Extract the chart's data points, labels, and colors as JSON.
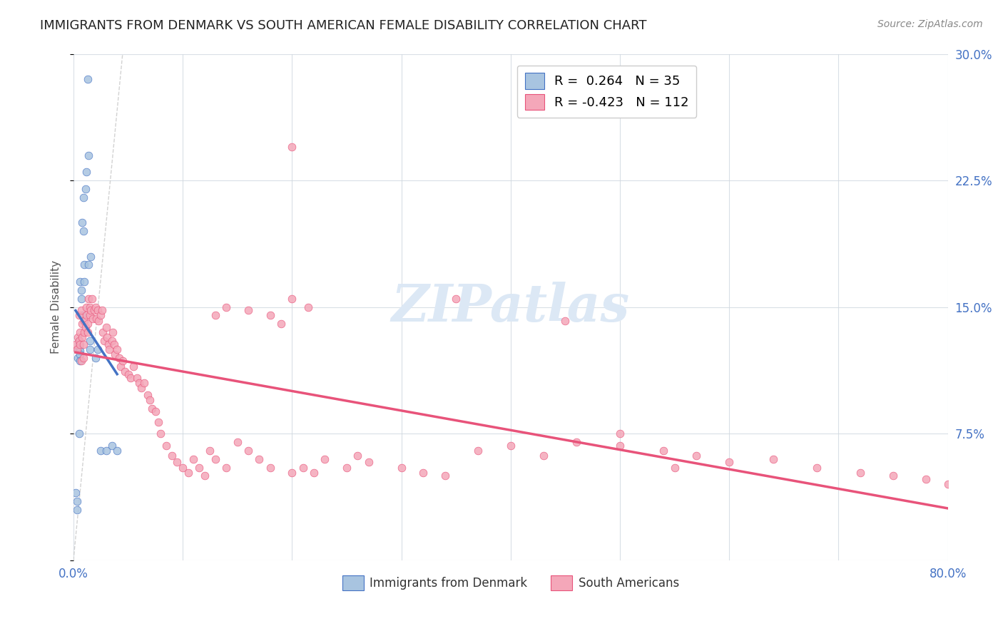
{
  "title": "IMMIGRANTS FROM DENMARK VS SOUTH AMERICAN FEMALE DISABILITY CORRELATION CHART",
  "source": "Source: ZipAtlas.com",
  "xlabel": "",
  "ylabel": "Female Disability",
  "watermark": "ZIPatlas",
  "xlim": [
    0.0,
    0.8
  ],
  "ylim": [
    0.0,
    0.3
  ],
  "xticks": [
    0.0,
    0.1,
    0.2,
    0.3,
    0.4,
    0.5,
    0.6,
    0.7,
    0.8
  ],
  "xticklabels": [
    "0.0%",
    "",
    "",
    "",
    "",
    "",
    "",
    "",
    "80.0%"
  ],
  "yticks": [
    0.0,
    0.075,
    0.15,
    0.225,
    0.3
  ],
  "yticklabels": [
    "",
    "7.5%",
    "15.0%",
    "22.5%",
    "30.0%"
  ],
  "legend_entry1": "R =  0.264   N = 35",
  "legend_entry2": "R = -0.423   N = 112",
  "legend_label1": "Immigrants from Denmark",
  "legend_label2": "South Americans",
  "denmark_R": 0.264,
  "denmark_N": 35,
  "sa_R": -0.423,
  "sa_N": 112,
  "denmark_color": "#a8c4e0",
  "denmark_line_color": "#4472c4",
  "sa_color": "#f4a7b9",
  "sa_line_color": "#e8537a",
  "diagonal_color": "#c0c0c0",
  "background_color": "#ffffff",
  "grid_color": "#d0d8e0",
  "title_color": "#222222",
  "source_color": "#888888",
  "right_tick_color": "#4472c4",
  "watermark_color": "#dce8f5",
  "denmark_points_x": [
    0.002,
    0.003,
    0.003,
    0.004,
    0.004,
    0.005,
    0.005,
    0.005,
    0.005,
    0.006,
    0.006,
    0.006,
    0.006,
    0.007,
    0.007,
    0.008,
    0.008,
    0.009,
    0.009,
    0.01,
    0.01,
    0.011,
    0.012,
    0.013,
    0.014,
    0.014,
    0.015,
    0.015,
    0.016,
    0.02,
    0.022,
    0.025,
    0.03,
    0.035,
    0.04
  ],
  "denmark_points_y": [
    0.04,
    0.035,
    0.03,
    0.125,
    0.12,
    0.13,
    0.128,
    0.126,
    0.075,
    0.124,
    0.122,
    0.118,
    0.165,
    0.16,
    0.155,
    0.145,
    0.2,
    0.195,
    0.215,
    0.165,
    0.175,
    0.22,
    0.23,
    0.285,
    0.175,
    0.24,
    0.13,
    0.125,
    0.18,
    0.12,
    0.125,
    0.065,
    0.065,
    0.068,
    0.065
  ],
  "sa_points_x": [
    0.002,
    0.003,
    0.004,
    0.005,
    0.005,
    0.006,
    0.006,
    0.007,
    0.007,
    0.008,
    0.008,
    0.009,
    0.009,
    0.01,
    0.01,
    0.011,
    0.012,
    0.012,
    0.013,
    0.013,
    0.014,
    0.015,
    0.015,
    0.016,
    0.017,
    0.018,
    0.019,
    0.02,
    0.021,
    0.022,
    0.023,
    0.025,
    0.026,
    0.027,
    0.028,
    0.03,
    0.031,
    0.032,
    0.033,
    0.035,
    0.036,
    0.037,
    0.038,
    0.04,
    0.042,
    0.043,
    0.045,
    0.047,
    0.05,
    0.052,
    0.055,
    0.058,
    0.06,
    0.062,
    0.065,
    0.068,
    0.07,
    0.072,
    0.075,
    0.078,
    0.08,
    0.085,
    0.09,
    0.095,
    0.1,
    0.105,
    0.11,
    0.115,
    0.12,
    0.125,
    0.13,
    0.14,
    0.15,
    0.16,
    0.17,
    0.18,
    0.2,
    0.21,
    0.22,
    0.23,
    0.25,
    0.26,
    0.27,
    0.3,
    0.32,
    0.34,
    0.37,
    0.4,
    0.43,
    0.46,
    0.5,
    0.54,
    0.57,
    0.6,
    0.64,
    0.68,
    0.72,
    0.75,
    0.78,
    0.8,
    0.2,
    0.35,
    0.45,
    0.5,
    0.55,
    0.13,
    0.14,
    0.16,
    0.18,
    0.19,
    0.2,
    0.215
  ],
  "sa_points_y": [
    0.128,
    0.125,
    0.132,
    0.13,
    0.145,
    0.128,
    0.135,
    0.148,
    0.118,
    0.132,
    0.14,
    0.128,
    0.12,
    0.135,
    0.142,
    0.138,
    0.15,
    0.145,
    0.14,
    0.135,
    0.155,
    0.15,
    0.145,
    0.148,
    0.155,
    0.143,
    0.148,
    0.15,
    0.143,
    0.148,
    0.142,
    0.145,
    0.148,
    0.135,
    0.13,
    0.138,
    0.132,
    0.128,
    0.125,
    0.13,
    0.135,
    0.128,
    0.122,
    0.125,
    0.12,
    0.115,
    0.118,
    0.112,
    0.11,
    0.108,
    0.115,
    0.108,
    0.105,
    0.102,
    0.105,
    0.098,
    0.095,
    0.09,
    0.088,
    0.082,
    0.075,
    0.068,
    0.062,
    0.058,
    0.055,
    0.052,
    0.06,
    0.055,
    0.05,
    0.065,
    0.06,
    0.055,
    0.07,
    0.065,
    0.06,
    0.055,
    0.052,
    0.055,
    0.052,
    0.06,
    0.055,
    0.062,
    0.058,
    0.055,
    0.052,
    0.05,
    0.065,
    0.068,
    0.062,
    0.07,
    0.075,
    0.065,
    0.062,
    0.058,
    0.06,
    0.055,
    0.052,
    0.05,
    0.048,
    0.045,
    0.245,
    0.155,
    0.142,
    0.068,
    0.055,
    0.145,
    0.15,
    0.148,
    0.145,
    0.14,
    0.155,
    0.15
  ]
}
